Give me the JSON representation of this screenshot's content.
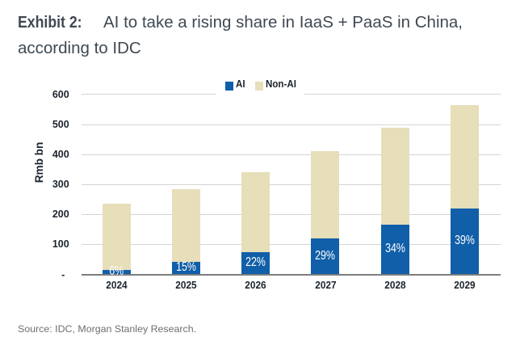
{
  "header": {
    "exhibit_label": "Exhibit 2:",
    "title_lines": [
      "AI to take a rising share in IaaS + PaaS in China,",
      "according to IDC"
    ],
    "title": "AI to take a rising share in IaaS + PaaS in China, according to IDC"
  },
  "footer": {
    "source": "Source: IDC, Morgan Stanley Research."
  },
  "colors": {
    "ai_bar": "#105fa8",
    "non_ai_bar": "#e7deba",
    "gridline": "#d5d5d5",
    "axis_line": "#7d7d7d",
    "tick_text": "#1c242e",
    "title_text": "#3f4953",
    "source_text": "#6f6f6f",
    "bar_label_text": "#ffffff"
  },
  "chart_data": {
    "type": "bar",
    "stacked": true,
    "title": "AI to take a rising share in IaaS + PaaS in China, according to IDC",
    "categories": [
      "2024",
      "2025",
      "2026",
      "2027",
      "2028",
      "2029"
    ],
    "series": [
      {
        "name": "AI",
        "color": "#105fa8",
        "values": [
          14.2,
          42.8,
          75.2,
          118.9,
          165.9,
          220.7
        ]
      },
      {
        "name": "Non-AI",
        "color": "#e7deba",
        "values": [
          222.8,
          242.2,
          266.8,
          291.1,
          322.1,
          345.3
        ]
      }
    ],
    "totals": [
      237,
      285,
      342,
      410,
      488,
      566
    ],
    "ai_share_labels": [
      "6%",
      "15%",
      "22%",
      "29%",
      "34%",
      "39%"
    ],
    "xlabel": "",
    "ylabel": "Rmb bn",
    "y_ticks": [
      "600",
      "500",
      "400",
      "300",
      "200",
      "100",
      "-"
    ],
    "y_tick_values": [
      600,
      500,
      400,
      300,
      200,
      100,
      0
    ],
    "ylim": [
      0,
      620
    ],
    "grid": "horizontal",
    "legend_position": "top",
    "legend_entries": [
      "AI",
      "Non-AI"
    ]
  }
}
